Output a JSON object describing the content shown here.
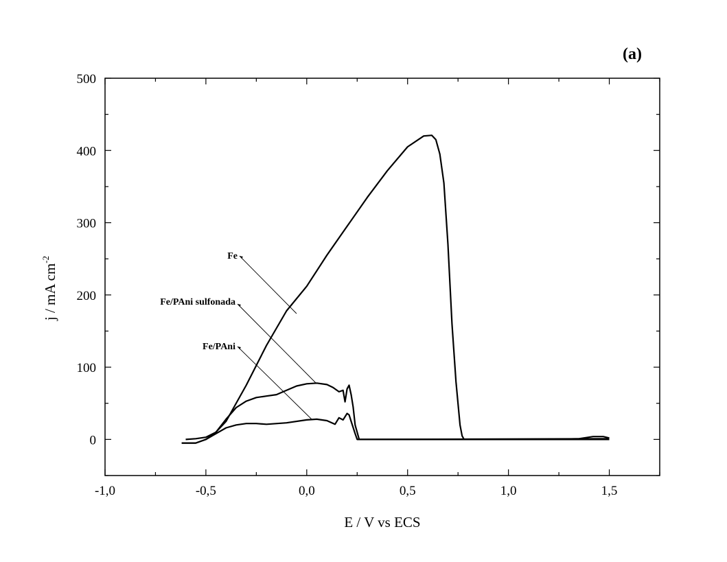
{
  "chart_data": {
    "type": "line",
    "panel_label": "(a)",
    "xlabel": "E / V vs ECS",
    "ylabel": "j / mA cm",
    "ylabel_sup": "-2",
    "xlim": [
      -1.0,
      1.75
    ],
    "ylim": [
      -50,
      500
    ],
    "xticks": [
      -1.0,
      -0.5,
      0.0,
      0.5,
      1.0,
      1.5
    ],
    "xtick_labels": [
      "-1,0",
      "-0,5",
      "0,0",
      "0,5",
      "1,0",
      "1,5"
    ],
    "yticks": [
      0,
      100,
      200,
      300,
      400,
      500
    ],
    "ytick_labels": [
      "0",
      "100",
      "200",
      "300",
      "400",
      "500"
    ],
    "grid": false,
    "series": [
      {
        "name": "Fe",
        "x": [
          -0.6,
          -0.55,
          -0.5,
          -0.45,
          -0.4,
          -0.3,
          -0.2,
          -0.1,
          0.0,
          0.1,
          0.2,
          0.3,
          0.4,
          0.5,
          0.58,
          0.62,
          0.64,
          0.66,
          0.68,
          0.7,
          0.72,
          0.74,
          0.76,
          0.77,
          0.78,
          1.0,
          1.2,
          1.35,
          1.42,
          1.47,
          1.5
        ],
        "y": [
          0,
          1,
          3,
          10,
          25,
          75,
          130,
          178,
          212,
          255,
          295,
          335,
          372,
          405,
          420,
          421,
          415,
          395,
          355,
          270,
          160,
          80,
          20,
          5,
          0,
          0,
          0,
          1,
          4,
          4,
          2
        ]
      },
      {
        "name": "Fe/PAni sulfonada",
        "x": [
          -0.62,
          -0.55,
          -0.5,
          -0.45,
          -0.4,
          -0.35,
          -0.3,
          -0.25,
          -0.2,
          -0.15,
          -0.1,
          -0.05,
          0.0,
          0.05,
          0.1,
          0.13,
          0.16,
          0.18,
          0.19,
          0.2,
          0.21,
          0.22,
          0.23,
          0.24,
          0.26,
          0.3,
          1.5
        ],
        "y": [
          -5,
          -5,
          0,
          10,
          28,
          44,
          53,
          58,
          60,
          62,
          68,
          74,
          77,
          78,
          76,
          72,
          66,
          68,
          52,
          70,
          75,
          62,
          45,
          20,
          0,
          0,
          0
        ]
      },
      {
        "name": "Fe/PAni",
        "x": [
          -0.62,
          -0.55,
          -0.5,
          -0.45,
          -0.4,
          -0.35,
          -0.3,
          -0.25,
          -0.2,
          -0.1,
          0.0,
          0.05,
          0.1,
          0.14,
          0.16,
          0.18,
          0.2,
          0.21,
          0.22,
          0.24,
          0.25,
          0.3,
          1.5
        ],
        "y": [
          -5,
          -5,
          0,
          8,
          16,
          20,
          22,
          22,
          21,
          23,
          27,
          28,
          26,
          21,
          30,
          27,
          36,
          34,
          25,
          8,
          0,
          0,
          1
        ]
      }
    ],
    "annotations": [
      "Fe",
      "Fe/PAni sulfonada",
      "Fe/PAni"
    ]
  }
}
